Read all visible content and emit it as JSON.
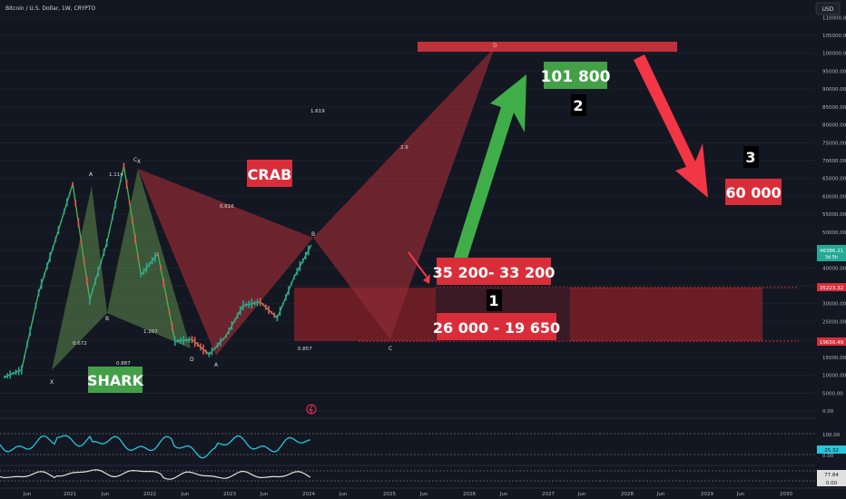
{
  "header": {
    "symbol_title": "Bitcoin / U.S. Dollar, 1W, CRYPTO",
    "currency": "USD"
  },
  "price_axis": {
    "ticks": [
      "110000.00",
      "105000.00",
      "100000.00",
      "95000.00",
      "90000.00",
      "85000.00",
      "80000.00",
      "75000.00",
      "70000.00",
      "65000.00",
      "60000.00",
      "55000.00",
      "50000.00",
      "45000.00",
      "40000.00",
      "35000.00",
      "30000.00",
      "25000.00",
      "20000.00",
      "15000.00",
      "10000.00",
      "5000.00",
      "0.00"
    ],
    "current_price": "46386.21",
    "current_countdown": "3d 5h",
    "zone_upper_label": "35223.32",
    "zone_lower_label": "19650.49"
  },
  "time_axis": {
    "labels": [
      "Jun",
      "2021",
      "Jun",
      "2022",
      "Jun",
      "2023",
      "Jun",
      "2024",
      "Jun",
      "2025",
      "Jun",
      "2026",
      "Jun",
      "2027",
      "Jun",
      "2028",
      "Jun",
      "2029",
      "Jun",
      "2030"
    ]
  },
  "indicator_axis": {
    "ticks": [
      "100.00",
      "0.00"
    ],
    "rsi_value": "25.32",
    "lower_value": "77.84",
    "lower_value_2": "0.00"
  },
  "annotations": {
    "crab": "CRAB",
    "shark": "SHARK",
    "target_high": "101 800",
    "target_low": "60 000",
    "zone_top": "35 200- 33 200",
    "zone_bottom": "26 000 - 19 650",
    "step1": "1",
    "step2": "2",
    "step3": "3"
  },
  "pattern_points": {
    "shark": {
      "x": "X",
      "a": "A",
      "b": "B",
      "c": "C",
      "d": "D",
      "r1": "0.672",
      "r2": "0.887",
      "r3": "1.114",
      "r4": "1.207"
    },
    "crab": {
      "x": "X",
      "a": "A",
      "b": "B",
      "c": "C",
      "d": "D",
      "r1": "0.616",
      "r2": "0.857",
      "r3": "1.619",
      "r4": "2.9"
    }
  },
  "colors": {
    "background": "#131722",
    "red": "#d92e3a",
    "green": "#4caf50",
    "green_arrow": "#3fae49",
    "red_arrow": "#f23645",
    "cyan": "#26c6da"
  },
  "chart_data": {
    "type": "line",
    "title": "Bitcoin / U.S. Dollar, 1W, CRYPTO",
    "xlabel": "",
    "ylabel": "",
    "ylim": [
      0,
      112000
    ],
    "x": [
      "2020-07",
      "2020-10",
      "2021-01",
      "2021-02",
      "2021-04",
      "2021-07",
      "2021-09",
      "2021-11",
      "2022-01",
      "2022-03",
      "2022-06",
      "2022-09",
      "2022-11",
      "2023-01",
      "2023-04",
      "2023-07",
      "2023-09",
      "2023-11",
      "2024-01"
    ],
    "series": [
      {
        "name": "BTCUSD",
        "values": [
          9500,
          11500,
          33000,
          48000,
          63500,
          31000,
          47000,
          68500,
          38000,
          44000,
          19500,
          20000,
          15800,
          21000,
          29500,
          30500,
          26000,
          37500,
          46386
        ]
      }
    ],
    "zones": [
      {
        "label": "35 200- 33 200",
        "low": 33200,
        "high": 35200
      },
      {
        "label": "26 000 - 19 650",
        "low": 19650,
        "high": 26000
      }
    ],
    "targets": [
      {
        "label": "101 800",
        "value": 101800
      },
      {
        "label": "60 000",
        "value": 60000
      }
    ]
  }
}
